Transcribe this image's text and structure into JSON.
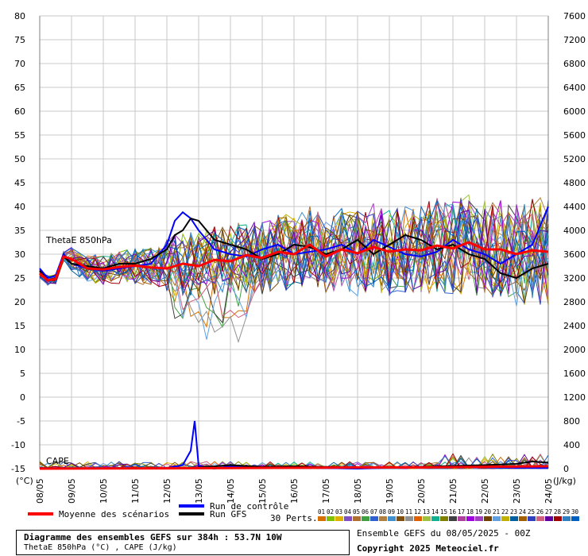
{
  "header": {
    "title": "Diagramme des ensembles GEFS sur 384h : 53.7N 10W",
    "subtitle": "ThetaE 850hPa (°C) , CAPE (J/kg)",
    "run_info": "Ensemble GEFS du 08/05/2025 - 00Z",
    "copyright": "Copyright 2025 Meteociel.fr"
  },
  "legend": {
    "control_label": "Run de contrôle",
    "gfs_label": "Run GFS",
    "mean_label": "Moyenne des scénarios",
    "perts_label": "30 Perts.",
    "perts_numbers": [
      "01",
      "02",
      "03",
      "04",
      "05",
      "06",
      "07",
      "08",
      "09",
      "10",
      "11",
      "12",
      "13",
      "14",
      "15",
      "16",
      "17",
      "18",
      "19",
      "20",
      "21",
      "22",
      "23",
      "24",
      "25",
      "26",
      "27",
      "28",
      "29",
      "30"
    ],
    "perts_colors": [
      "#d87000",
      "#80c000",
      "#e0b000",
      "#8050c0",
      "#b07030",
      "#40a040",
      "#3060d0",
      "#b08040",
      "#4090d0",
      "#805010",
      "#909090",
      "#e06000",
      "#a0c040",
      "#10b090",
      "#808000",
      "#404040",
      "#b040a0",
      "#a000e0",
      "#a040c0",
      "#704000",
      "#60a0e0",
      "#c0b000",
      "#0060a0",
      "#a06000",
      "#3040c0",
      "#d06080",
      "#6000a0",
      "#a00000",
      "#3080c0",
      "#0060c0"
    ],
    "control_color": "#0000ff",
    "gfs_color": "#000000",
    "mean_color": "#ff0000"
  },
  "chart_data": {
    "type": "line",
    "thetae_label": "ThetaE 850hPa",
    "cape_label": "CAPE",
    "left_unit": "(°C)",
    "right_unit": "(J/kg)",
    "left_axis": {
      "ylim": [
        -15,
        80
      ],
      "ticks": [
        80,
        75,
        70,
        65,
        60,
        55,
        50,
        45,
        40,
        35,
        30,
        25,
        20,
        15,
        10,
        5,
        0,
        -5,
        -10,
        -15
      ]
    },
    "right_axis": {
      "ylim": [
        0,
        7600
      ],
      "ticks": [
        7600,
        7200,
        6800,
        6400,
        6000,
        5600,
        5200,
        4800,
        4400,
        4000,
        3600,
        3200,
        2800,
        2400,
        2000,
        1600,
        1200,
        800,
        400,
        0
      ]
    },
    "x_labels": [
      "08/05",
      "09/05",
      "10/05",
      "11/05",
      "12/05",
      "13/05",
      "14/05",
      "15/05",
      "16/05",
      "17/05",
      "18/05",
      "19/05",
      "20/05",
      "21/05",
      "22/05",
      "23/05",
      "24/05"
    ],
    "x_hours": [
      0,
      24,
      48,
      72,
      96,
      120,
      144,
      168,
      192,
      216,
      240,
      264,
      288,
      312,
      336,
      360,
      384
    ],
    "grid": true,
    "series": [
      {
        "name": "Moyenne des scénarios",
        "hours": [
          0,
          6,
          12,
          18,
          24,
          36,
          48,
          60,
          72,
          84,
          96,
          108,
          120,
          132,
          144,
          156,
          168,
          180,
          192,
          204,
          216,
          228,
          240,
          252,
          264,
          276,
          288,
          300,
          312,
          324,
          336,
          348,
          360,
          372,
          384
        ],
        "values": [
          26,
          24.5,
          24.8,
          29.5,
          29,
          27,
          26.8,
          27.3,
          27.6,
          27.2,
          27,
          28,
          27.5,
          28.8,
          28.5,
          29.8,
          29.2,
          30.5,
          30,
          32,
          29.5,
          31,
          30.2,
          31.5,
          30.5,
          31,
          30.8,
          31.8,
          31.2,
          32.5,
          31,
          31,
          30,
          30.8,
          30.5
        ]
      },
      {
        "name": "Run de contrôle",
        "hours": [
          0,
          6,
          12,
          18,
          24,
          36,
          48,
          60,
          72,
          84,
          96,
          102,
          108,
          114,
          120,
          132,
          144,
          156,
          168,
          180,
          192,
          204,
          216,
          228,
          240,
          252,
          264,
          276,
          288,
          300,
          312,
          324,
          336,
          348,
          360,
          372,
          384
        ],
        "values": [
          27,
          25,
          25.5,
          30,
          28,
          27,
          26.5,
          27,
          27.5,
          28,
          32,
          37,
          38.8,
          37.5,
          35,
          31,
          30,
          29.5,
          31,
          32,
          30,
          30.5,
          31,
          32,
          30,
          33,
          31.5,
          30,
          29.5,
          30.5,
          33,
          31,
          30,
          28,
          30,
          32,
          40
        ]
      },
      {
        "name": "Run GFS",
        "hours": [
          0,
          6,
          12,
          18,
          24,
          36,
          48,
          60,
          72,
          84,
          96,
          102,
          108,
          114,
          120,
          132,
          144,
          156,
          168,
          180,
          192,
          204,
          216,
          228,
          240,
          252,
          264,
          276,
          288,
          300,
          312,
          324,
          336,
          348,
          360,
          372,
          384
        ],
        "values": [
          26.5,
          24.5,
          25,
          29.5,
          28,
          27.5,
          27,
          28,
          28,
          29,
          31,
          34,
          35,
          37.5,
          37,
          33,
          32,
          31,
          29,
          30,
          32,
          31.5,
          30,
          31,
          33,
          30,
          32,
          34,
          33,
          31,
          32,
          30,
          29,
          26,
          25,
          27,
          28
        ]
      }
    ],
    "cape_series": [
      {
        "name": "Run de contrôle",
        "hours": [
          0,
          48,
          96,
          108,
          114,
          117,
          120,
          132,
          144,
          192,
          240,
          288,
          336,
          384
        ],
        "values": [
          0,
          0,
          10,
          60,
          300,
          800,
          40,
          0,
          40,
          20,
          0,
          30,
          20,
          10
        ]
      },
      {
        "name": "Run GFS",
        "hours": [
          0,
          96,
          120,
          144,
          168,
          192,
          240,
          288,
          336,
          360,
          372,
          384
        ],
        "values": [
          0,
          0,
          20,
          60,
          30,
          40,
          20,
          30,
          60,
          80,
          120,
          100
        ]
      },
      {
        "name": "Moyenne des scénarios",
        "hours": [
          0,
          96,
          144,
          192,
          240,
          288,
          336,
          384
        ],
        "values": [
          0,
          5,
          10,
          15,
          20,
          20,
          30,
          40
        ]
      }
    ]
  }
}
